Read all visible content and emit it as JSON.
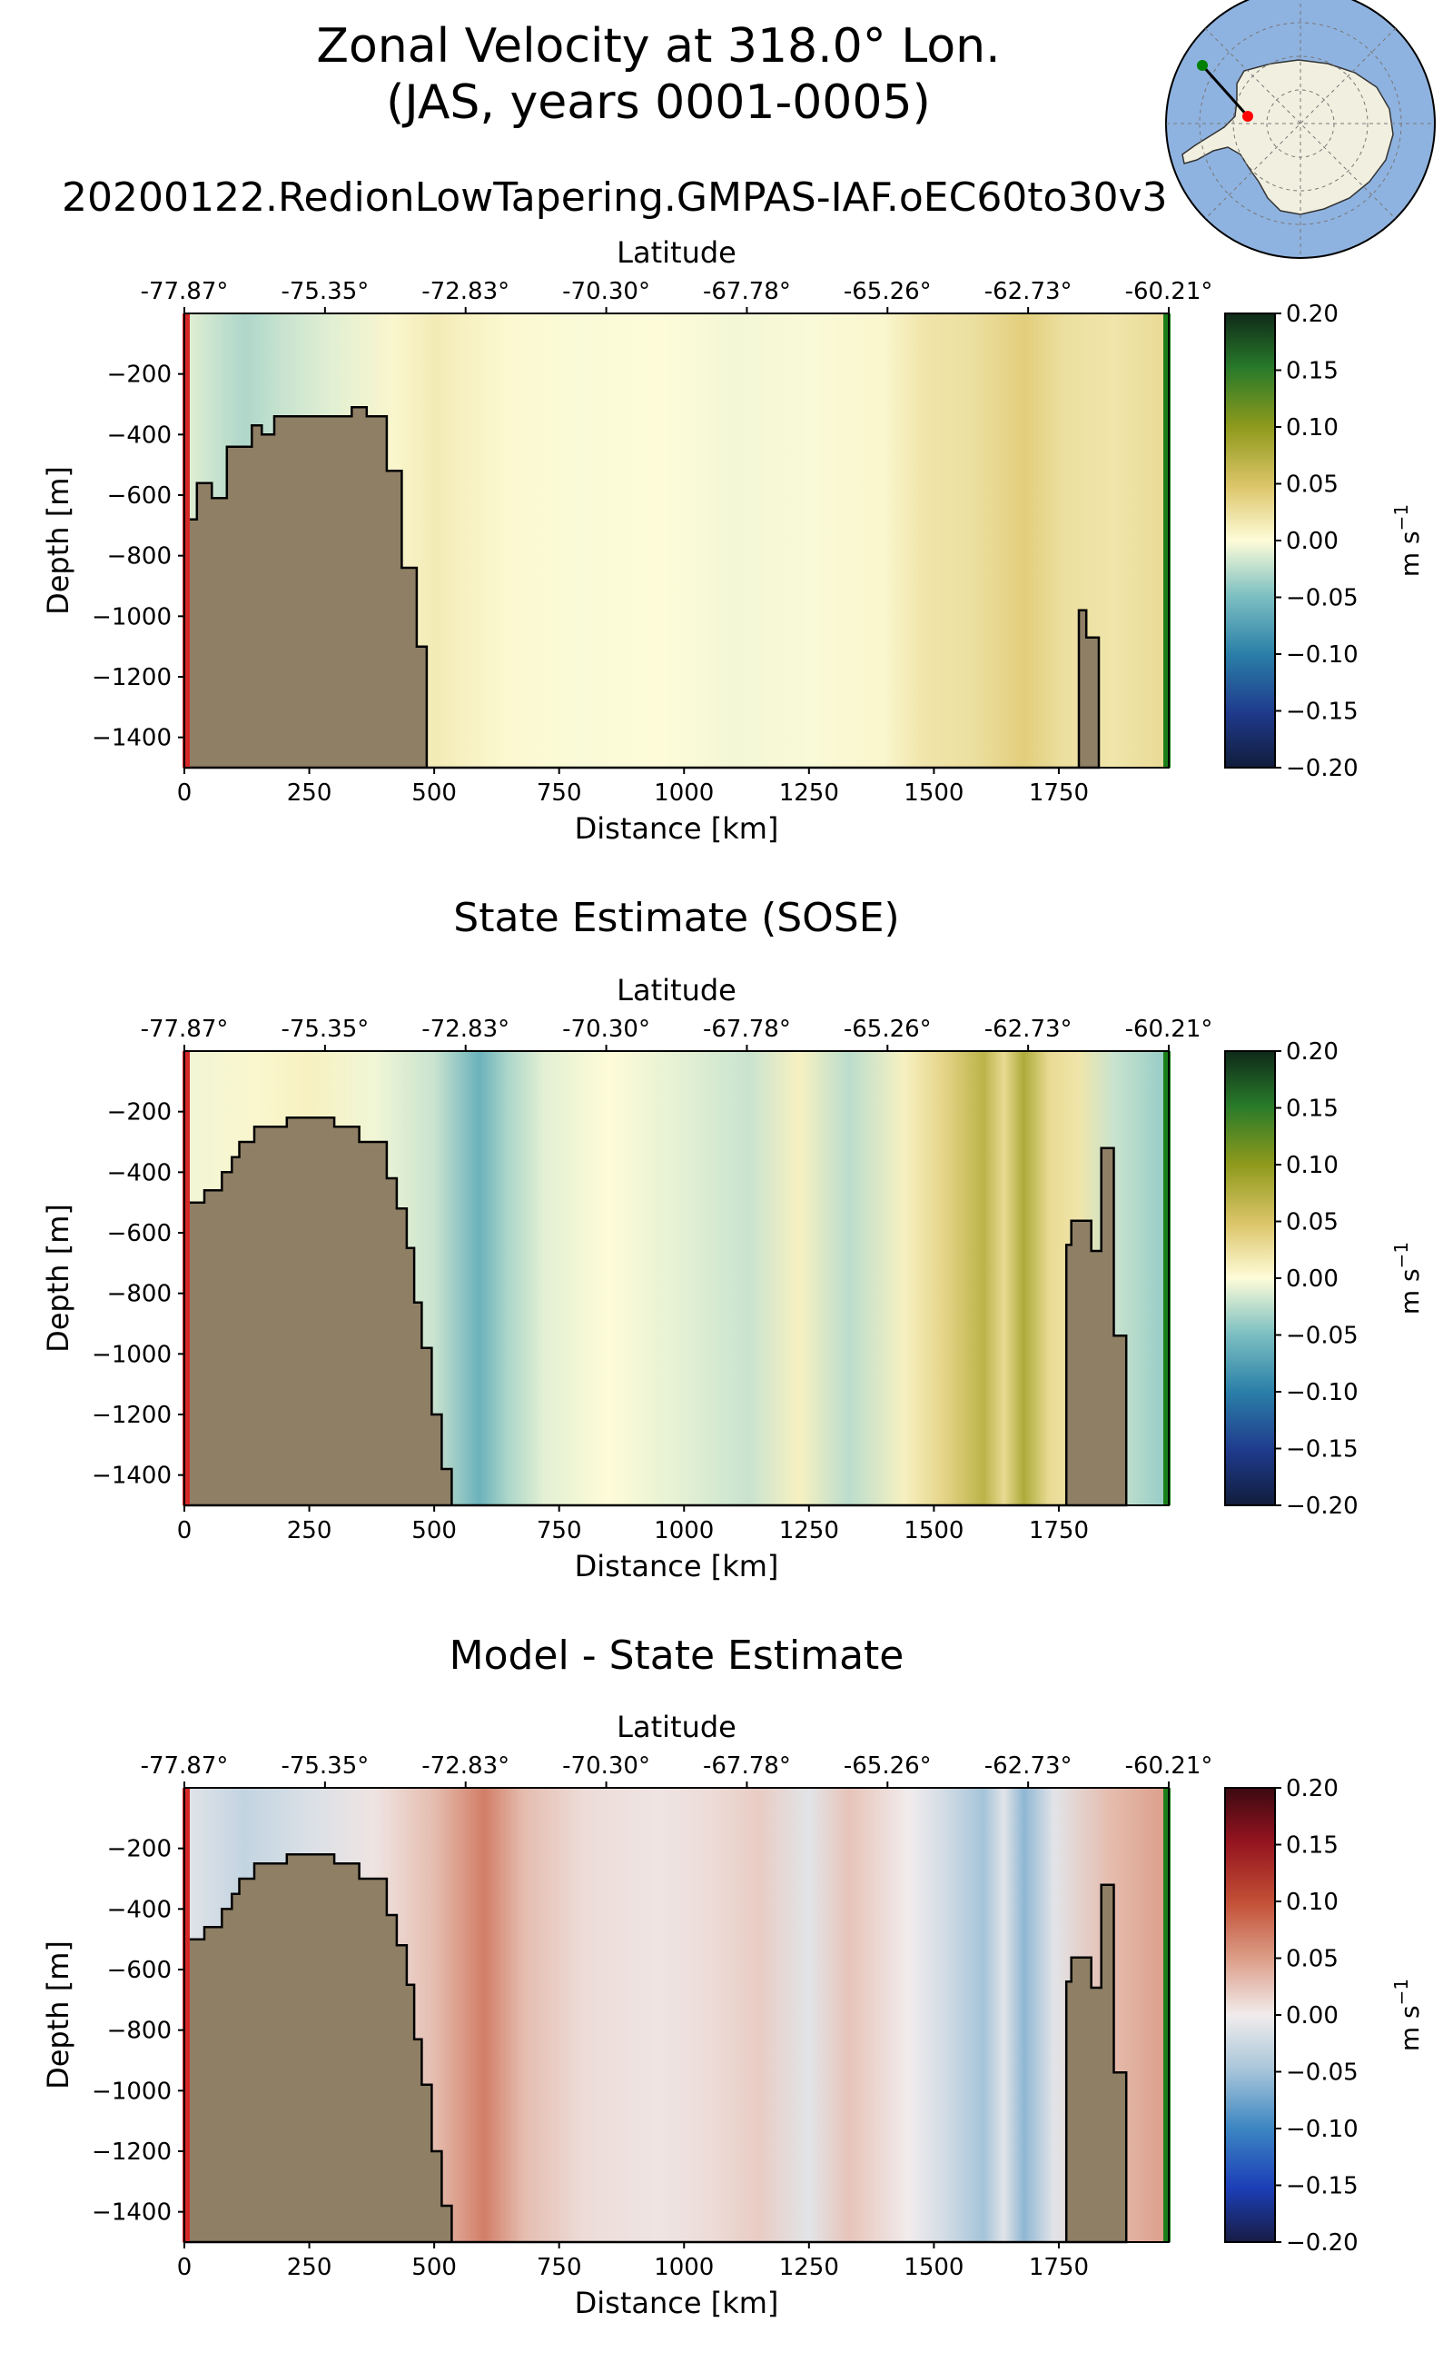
{
  "figure": {
    "title_line1": "Zonal Velocity at 318.0° Lon.",
    "title_line2": "(JAS, years 0001-0005)",
    "subtitle": "20200122.RedionLowTapering.GMPAS-IAF.oEC60to30v3"
  },
  "inset_map": {
    "ocean_color": "#8fb3e0",
    "land_color": "#f1f0e0",
    "start_marker_color": "#ff0000",
    "end_marker_color": "#008000"
  },
  "colors": {
    "topography": "#8e7f65",
    "start_line": "#d62728",
    "end_line": "#1a7f1a"
  },
  "chart_data": [
    {
      "type": "heatmap",
      "title": "",
      "top_xlabel": "Latitude",
      "top_ticks": [
        "-77.87°",
        "-75.35°",
        "-72.83°",
        "-70.30°",
        "-67.78°",
        "-65.26°",
        "-62.73°",
        "-60.21°"
      ],
      "xlabel": "Distance [km]",
      "ylabel": "Depth [m]",
      "xlim": [
        0,
        1970
      ],
      "ylim": [
        -1500,
        0
      ],
      "xticks": [
        0,
        250,
        500,
        750,
        1000,
        1250,
        1500,
        1750
      ],
      "yticks": [
        -200,
        -400,
        -600,
        -800,
        -1000,
        -1200,
        -1400
      ],
      "colorbar": {
        "label": "m s",
        "label_sup": "−1",
        "range": [
          -0.2,
          0.2
        ],
        "ticks": [
          "0.20",
          "0.15",
          "0.10",
          "0.05",
          "0.00",
          "−0.05",
          "−0.10",
          "−0.15",
          "−0.20"
        ],
        "colormap": "delta"
      },
      "topography": [
        [
          0,
          -680
        ],
        [
          25,
          -680
        ],
        [
          25,
          -560
        ],
        [
          55,
          -560
        ],
        [
          55,
          -610
        ],
        [
          85,
          -610
        ],
        [
          85,
          -440
        ],
        [
          135,
          -440
        ],
        [
          135,
          -370
        ],
        [
          155,
          -370
        ],
        [
          155,
          -400
        ],
        [
          180,
          -400
        ],
        [
          180,
          -340
        ],
        [
          335,
          -340
        ],
        [
          335,
          -310
        ],
        [
          365,
          -310
        ],
        [
          365,
          -340
        ],
        [
          405,
          -340
        ],
        [
          405,
          -520
        ],
        [
          435,
          -520
        ],
        [
          435,
          -840
        ],
        [
          465,
          -840
        ],
        [
          465,
          -1100
        ],
        [
          485,
          -1100
        ],
        [
          485,
          -1500
        ],
        [
          1800,
          -1500
        ],
        [
          1800,
          -1500
        ],
        [
          1790,
          -1500
        ],
        [
          1790,
          -980
        ],
        [
          1805,
          -980
        ],
        [
          1805,
          -1070
        ],
        [
          1830,
          -1070
        ],
        [
          1830,
          -1500
        ]
      ],
      "velocity_columns": [
        {
          "x": 0,
          "v": -0.01
        },
        {
          "x": 120,
          "v": -0.03
        },
        {
          "x": 200,
          "v": -0.02
        },
        {
          "x": 300,
          "v": -0.01
        },
        {
          "x": 420,
          "v": 0.005
        },
        {
          "x": 500,
          "v": 0.015
        },
        {
          "x": 560,
          "v": 0.01
        },
        {
          "x": 650,
          "v": 0.003
        },
        {
          "x": 800,
          "v": -0.002
        },
        {
          "x": 950,
          "v": 0.0
        },
        {
          "x": 1100,
          "v": -0.004
        },
        {
          "x": 1250,
          "v": -0.002
        },
        {
          "x": 1400,
          "v": 0.005
        },
        {
          "x": 1480,
          "v": 0.02
        },
        {
          "x": 1580,
          "v": 0.025
        },
        {
          "x": 1680,
          "v": 0.04
        },
        {
          "x": 1760,
          "v": 0.025
        },
        {
          "x": 1860,
          "v": 0.02
        },
        {
          "x": 1970,
          "v": 0.03
        }
      ]
    },
    {
      "type": "heatmap",
      "title": "State Estimate (SOSE)",
      "top_xlabel": "Latitude",
      "top_ticks": [
        "-77.87°",
        "-75.35°",
        "-72.83°",
        "-70.30°",
        "-67.78°",
        "-65.26°",
        "-62.73°",
        "-60.21°"
      ],
      "xlabel": "Distance [km]",
      "ylabel": "Depth [m]",
      "xlim": [
        0,
        1970
      ],
      "ylim": [
        -1500,
        0
      ],
      "xticks": [
        0,
        250,
        500,
        750,
        1000,
        1250,
        1500,
        1750
      ],
      "yticks": [
        -200,
        -400,
        -600,
        -800,
        -1000,
        -1200,
        -1400
      ],
      "colorbar": {
        "label": "m s",
        "label_sup": "−1",
        "range": [
          -0.2,
          0.2
        ],
        "ticks": [
          "0.20",
          "0.15",
          "0.10",
          "0.05",
          "0.00",
          "−0.05",
          "−0.10",
          "−0.15",
          "−0.20"
        ],
        "colormap": "delta"
      },
      "topography": [
        [
          0,
          -500
        ],
        [
          40,
          -500
        ],
        [
          40,
          -460
        ],
        [
          75,
          -460
        ],
        [
          75,
          -400
        ],
        [
          95,
          -400
        ],
        [
          95,
          -350
        ],
        [
          110,
          -350
        ],
        [
          110,
          -300
        ],
        [
          140,
          -300
        ],
        [
          140,
          -250
        ],
        [
          205,
          -250
        ],
        [
          205,
          -220
        ],
        [
          300,
          -220
        ],
        [
          300,
          -250
        ],
        [
          350,
          -250
        ],
        [
          350,
          -300
        ],
        [
          405,
          -300
        ],
        [
          405,
          -420
        ],
        [
          425,
          -420
        ],
        [
          425,
          -520
        ],
        [
          445,
          -520
        ],
        [
          445,
          -650
        ],
        [
          460,
          -650
        ],
        [
          460,
          -830
        ],
        [
          475,
          -830
        ],
        [
          475,
          -980
        ],
        [
          495,
          -980
        ],
        [
          495,
          -1200
        ],
        [
          515,
          -1200
        ],
        [
          515,
          -1380
        ],
        [
          535,
          -1380
        ],
        [
          535,
          -1500
        ],
        [
          1765,
          -1500
        ],
        [
          1765,
          -640
        ],
        [
          1775,
          -640
        ],
        [
          1775,
          -560
        ],
        [
          1815,
          -560
        ],
        [
          1815,
          -660
        ],
        [
          1835,
          -660
        ],
        [
          1835,
          -320
        ],
        [
          1860,
          -320
        ],
        [
          1860,
          -940
        ],
        [
          1885,
          -940
        ],
        [
          1885,
          -1500
        ]
      ],
      "velocity_columns": [
        {
          "x": 0,
          "v": -0.005
        },
        {
          "x": 150,
          "v": 0.005
        },
        {
          "x": 250,
          "v": 0.01
        },
        {
          "x": 380,
          "v": -0.005
        },
        {
          "x": 500,
          "v": -0.02
        },
        {
          "x": 590,
          "v": -0.06
        },
        {
          "x": 650,
          "v": -0.03
        },
        {
          "x": 720,
          "v": -0.01
        },
        {
          "x": 850,
          "v": 0.0
        },
        {
          "x": 1000,
          "v": -0.01
        },
        {
          "x": 1130,
          "v": -0.02
        },
        {
          "x": 1230,
          "v": 0.01
        },
        {
          "x": 1330,
          "v": -0.025
        },
        {
          "x": 1440,
          "v": 0.01
        },
        {
          "x": 1520,
          "v": 0.035
        },
        {
          "x": 1600,
          "v": 0.07
        },
        {
          "x": 1640,
          "v": 0.03
        },
        {
          "x": 1680,
          "v": 0.08
        },
        {
          "x": 1730,
          "v": 0.03
        },
        {
          "x": 1790,
          "v": 0.02
        },
        {
          "x": 1860,
          "v": -0.02
        },
        {
          "x": 1970,
          "v": -0.04
        }
      ]
    },
    {
      "type": "heatmap",
      "title": "Model - State Estimate",
      "top_xlabel": "Latitude",
      "top_ticks": [
        "-77.87°",
        "-75.35°",
        "-72.83°",
        "-70.30°",
        "-67.78°",
        "-65.26°",
        "-62.73°",
        "-60.21°"
      ],
      "xlabel": "Distance [km]",
      "ylabel": "Depth [m]",
      "xlim": [
        0,
        1970
      ],
      "ylim": [
        -1500,
        0
      ],
      "xticks": [
        0,
        250,
        500,
        750,
        1000,
        1250,
        1500,
        1750
      ],
      "yticks": [
        -200,
        -400,
        -600,
        -800,
        -1000,
        -1200,
        -1400
      ],
      "colorbar": {
        "label": "m s",
        "label_sup": "−1",
        "range": [
          -0.2,
          0.2
        ],
        "ticks": [
          "0.20",
          "0.15",
          "0.10",
          "0.05",
          "0.00",
          "−0.05",
          "−0.10",
          "−0.15",
          "−0.20"
        ],
        "colormap": "balance"
      },
      "topography": [
        [
          0,
          -500
        ],
        [
          40,
          -500
        ],
        [
          40,
          -460
        ],
        [
          75,
          -460
        ],
        [
          75,
          -400
        ],
        [
          95,
          -400
        ],
        [
          95,
          -350
        ],
        [
          110,
          -350
        ],
        [
          110,
          -300
        ],
        [
          140,
          -300
        ],
        [
          140,
          -250
        ],
        [
          205,
          -250
        ],
        [
          205,
          -220
        ],
        [
          300,
          -220
        ],
        [
          300,
          -250
        ],
        [
          350,
          -250
        ],
        [
          350,
          -300
        ],
        [
          405,
          -300
        ],
        [
          405,
          -420
        ],
        [
          425,
          -420
        ],
        [
          425,
          -520
        ],
        [
          445,
          -520
        ],
        [
          445,
          -650
        ],
        [
          460,
          -650
        ],
        [
          460,
          -830
        ],
        [
          475,
          -830
        ],
        [
          475,
          -980
        ],
        [
          495,
          -980
        ],
        [
          495,
          -1200
        ],
        [
          515,
          -1200
        ],
        [
          515,
          -1380
        ],
        [
          535,
          -1380
        ],
        [
          535,
          -1500
        ],
        [
          1765,
          -1500
        ],
        [
          1765,
          -640
        ],
        [
          1775,
          -640
        ],
        [
          1775,
          -560
        ],
        [
          1815,
          -560
        ],
        [
          1815,
          -660
        ],
        [
          1835,
          -660
        ],
        [
          1835,
          -320
        ],
        [
          1860,
          -320
        ],
        [
          1860,
          -940
        ],
        [
          1885,
          -940
        ],
        [
          1885,
          -1500
        ]
      ],
      "velocity_columns": [
        {
          "x": 0,
          "v": -0.01
        },
        {
          "x": 120,
          "v": -0.03
        },
        {
          "x": 250,
          "v": -0.015
        },
        {
          "x": 380,
          "v": 0.005
        },
        {
          "x": 500,
          "v": 0.03
        },
        {
          "x": 600,
          "v": 0.07
        },
        {
          "x": 680,
          "v": 0.03
        },
        {
          "x": 800,
          "v": 0.01
        },
        {
          "x": 950,
          "v": 0.005
        },
        {
          "x": 1050,
          "v": 0.01
        },
        {
          "x": 1150,
          "v": 0.02
        },
        {
          "x": 1250,
          "v": -0.01
        },
        {
          "x": 1330,
          "v": 0.025
        },
        {
          "x": 1450,
          "v": 0.0
        },
        {
          "x": 1520,
          "v": -0.02
        },
        {
          "x": 1600,
          "v": -0.05
        },
        {
          "x": 1640,
          "v": -0.01
        },
        {
          "x": 1680,
          "v": -0.06
        },
        {
          "x": 1740,
          "v": -0.01
        },
        {
          "x": 1850,
          "v": 0.03
        },
        {
          "x": 1970,
          "v": 0.05
        }
      ]
    }
  ]
}
